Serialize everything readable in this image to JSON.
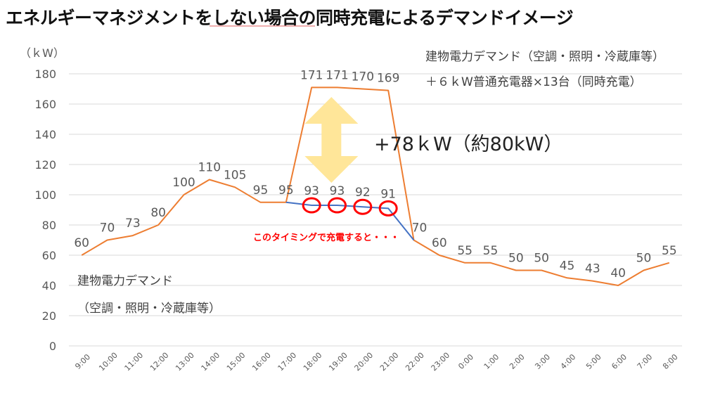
{
  "title": "エネルギーマネジメントをしない場合の同時充電によるデマンドイメージ",
  "annotations": {
    "top_right_line1": "建物電力デマンド（空調・照明・冷蔵庫等）",
    "top_right_line2": "＋６ｋW普通充電器×13台（同時充電）",
    "difference": "+78ｋW（約80kW）",
    "timing_note": "このタイミングで充電すると・・・",
    "left_line1": "建物電力デマンド",
    "left_line2": "（空調・照明・冷蔵庫等）"
  },
  "colors": {
    "charging_line": "#ed7d31",
    "managed_line": "#4472c4",
    "grid": "#d9d9d9",
    "arrow": "#ffe699",
    "circle": "#ff0000"
  },
  "chart_data": {
    "type": "line",
    "ylabel": "（ｋW）",
    "ylim": [
      0,
      180
    ],
    "yticks": [
      0,
      20,
      40,
      60,
      80,
      100,
      120,
      140,
      160,
      180
    ],
    "grid": true,
    "categories": [
      "9:00",
      "10:00",
      "11:00",
      "12:00",
      "13:00",
      "14:00",
      "15:00",
      "16:00",
      "17:00",
      "18:00",
      "19:00",
      "20:00",
      "21:00",
      "22:00",
      "23:00",
      "0:00",
      "1:00",
      "2:00",
      "3:00",
      "4:00",
      "5:00",
      "6:00",
      "7:00",
      "8:00"
    ],
    "series": [
      {
        "name": "建物電力デマンド（空調・照明・冷蔵庫等）＋６ｋW普通充電器×13台（同時充電）",
        "values": [
          60,
          70,
          73,
          80,
          100,
          110,
          105,
          95,
          95,
          171,
          171,
          170,
          169,
          70,
          60,
          55,
          55,
          50,
          50,
          45,
          43,
          40,
          50,
          55
        ],
        "labels": [
          "60",
          "70",
          "73",
          "80",
          "100",
          "110",
          "105",
          "95",
          "95",
          "171",
          "171",
          "170",
          "169",
          "70",
          "60",
          "55",
          "55",
          "50",
          "50",
          "45",
          "43",
          "40",
          "50",
          "55"
        ]
      },
      {
        "name": "建物電力デマンド（空調・照明・冷蔵庫等）",
        "values": [
          null,
          null,
          null,
          null,
          null,
          null,
          null,
          null,
          95,
          93,
          93,
          92,
          91,
          70,
          null,
          null,
          null,
          null,
          null,
          null,
          null,
          null,
          null,
          null
        ],
        "labels": [
          "",
          "",
          "",
          "",
          "",
          "",
          "",
          "",
          "",
          "93",
          "93",
          "92",
          "91",
          "",
          "",
          "",
          "",
          "",
          "",
          "",
          "",
          "",
          "",
          ""
        ]
      }
    ],
    "highlighted_indices": [
      9,
      10,
      11,
      12
    ]
  }
}
